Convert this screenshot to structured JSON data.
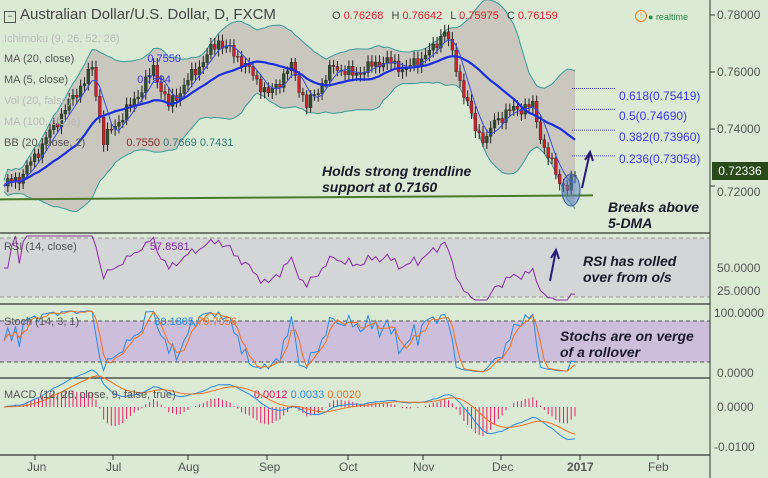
{
  "header": {
    "title": "Australian Dollar/U.S. Dollar, D, FXCM",
    "o_label": "O",
    "o": "0.76268",
    "h_label": "H",
    "h": "0.76642",
    "l_label": "L",
    "l": "0.75975",
    "c_label": "C",
    "c": "0.76159",
    "realtime": "realtime"
  },
  "indicators": {
    "ichimoku": "Ichimoku (9, 26, 52, 26)",
    "ma20": "MA (20, close)",
    "ma20_val": "0.7550",
    "ma5": "MA (5, close)",
    "ma5_val": "0.7594",
    "vol": "Vol (20, false)",
    "ma100": "MA (100, close)",
    "bb": "BB (20, close, 2)",
    "bb_vals": [
      "0.7550",
      "0.7669",
      "0.7431"
    ],
    "rsi": "RSI (14, close)",
    "rsi_val": "57.8581",
    "stoch": "Stoch (14, 3, 1)",
    "stoch_vals": [
      "80.1805",
      "79.7056"
    ],
    "macd": "MACD (12, 26, close, 9, false, true)",
    "macd_vals": [
      "0.0012",
      "0.0033",
      "0.0020"
    ]
  },
  "annotations": {
    "trendline": [
      "Holds strong trendline",
      "support at 0.7160"
    ],
    "dma": [
      "Breaks above",
      "5-DMA"
    ],
    "rsi": [
      "RSI has rolled",
      "over from o/s"
    ],
    "stoch": [
      "Stochs are on verge",
      "of a rollover"
    ]
  },
  "fib_labels": [
    "0.618(0.75419)",
    "0.5(0.74690)",
    "0.382(0.73960)",
    "0.236(0.73058)"
  ],
  "price_axis": [
    "0.78000",
    "0.76000",
    "0.74000",
    "0.72000"
  ],
  "last_price": "0.72336",
  "rsi_axis": [
    "50.0000",
    "25.0000"
  ],
  "stoch_axis": [
    "100.0000",
    "0.0000"
  ],
  "macd_axis": [
    "0.0000",
    "-0.0100"
  ],
  "time_axis": [
    "Jun",
    "Jul",
    "Aug",
    "Sep",
    "Oct",
    "Nov",
    "Dec",
    "2017",
    "Feb"
  ],
  "colors": {
    "bg": "#dbead4",
    "up": "#2f4f2f",
    "down": "#d0202a",
    "ma20": "#1a2ee0",
    "ma5": "#3a4aee",
    "bb": "#3a9a9a",
    "rsi": "#8a2aaa",
    "stochK": "#2a8ae8",
    "stochD": "#f07020",
    "macd": "#2a8ae8",
    "signal": "#f07020",
    "hist": "#e8206a",
    "trend": "#4a7a2a"
  },
  "chart_data": {
    "type": "candlestick",
    "title": "Australian Dollar/U.S. Dollar, D, FXCM",
    "ylim": [
      0.71,
      0.785
    ],
    "keypoint_closes": [
      0.72,
      0.724,
      0.743,
      0.761,
      0.736,
      0.75,
      0.761,
      0.748,
      0.757,
      0.771,
      0.764,
      0.752,
      0.762,
      0.748,
      0.762,
      0.759,
      0.764,
      0.761,
      0.768,
      0.775,
      0.757,
      0.74,
      0.736,
      0.743,
      0.747,
      0.748,
      0.733,
      0.722,
      0.719,
      0.7234
    ],
    "keypoint_days": [
      0,
      5,
      14,
      23,
      26,
      34,
      39,
      43,
      48,
      56,
      62,
      69,
      75,
      79,
      86,
      91,
      99,
      105,
      112,
      115,
      119,
      123,
      126,
      128,
      133,
      138,
      141,
      145,
      147,
      149
    ],
    "support": 0.716,
    "fib_levels": [
      0.75419,
      0.7469,
      0.7396,
      0.73058
    ]
  }
}
